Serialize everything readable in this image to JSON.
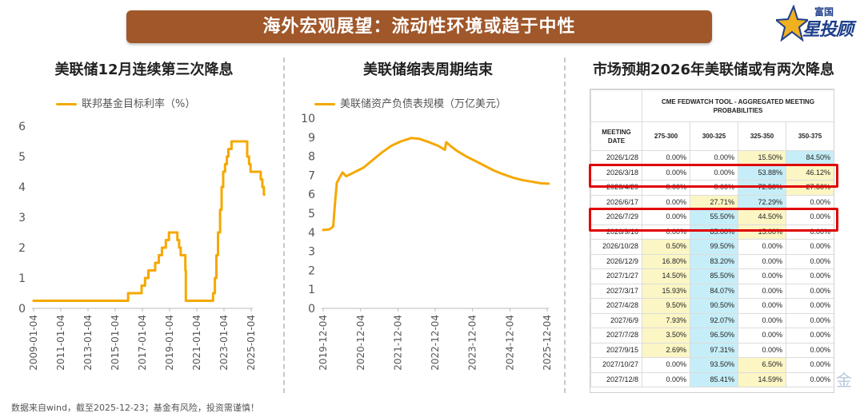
{
  "banner": {
    "title": "海外宏观展望：流动性环境或趋于中性"
  },
  "logo": {
    "small": "富国",
    "big": "星投顾",
    "icon": "star-icon"
  },
  "colors": {
    "line": "#f5a800",
    "banner": "#a0572a",
    "highlight_blue": "#c6eef8",
    "highlight_yellow": "#fbf6c4",
    "red_box": "#e00000"
  },
  "panels": {
    "left_title": "美联储12月连续第三次降息",
    "mid_title": "美联储缩表周期结束",
    "right_title": "市场预期2026年美联储或有两次降息"
  },
  "chart_data": [
    {
      "type": "line",
      "title": "美联储12月连续第三次降息",
      "legend": "top-left",
      "series": [
        {
          "name": "联邦基金目标利率（%）",
          "x": [
            "2009-01-01",
            "2015-12-16",
            "2016-12-14",
            "2017-03-15",
            "2017-06-14",
            "2017-12-13",
            "2018-03-21",
            "2018-06-13",
            "2018-09-26",
            "2018-12-19",
            "2019-07-31",
            "2019-09-18",
            "2019-10-30",
            "2020-03-03",
            "2020-03-15",
            "2022-03-16",
            "2022-05-04",
            "2022-06-15",
            "2022-07-27",
            "2022-09-21",
            "2022-11-02",
            "2022-12-14",
            "2023-02-01",
            "2023-03-22",
            "2023-05-03",
            "2023-07-26",
            "2024-09-18",
            "2024-11-07",
            "2024-12-18",
            "2025-09-17",
            "2025-10-29",
            "2025-12-10",
            "2025-12-23"
          ],
          "values": [
            0.25,
            0.5,
            0.75,
            1.0,
            1.25,
            1.5,
            1.75,
            2.0,
            2.25,
            2.5,
            2.25,
            2.0,
            1.75,
            1.25,
            0.25,
            0.5,
            1.0,
            1.75,
            2.5,
            3.25,
            4.0,
            4.5,
            4.75,
            5.0,
            5.25,
            5.5,
            5.0,
            4.75,
            4.5,
            4.25,
            4.0,
            3.75,
            3.75
          ]
        }
      ],
      "xticks": [
        "2009-01-04",
        "2011-01-04",
        "2013-01-04",
        "2015-01-04",
        "2017-01-04",
        "2019-01-04",
        "2021-01-04",
        "2023-01-04",
        "2025-01-04"
      ],
      "ylim": [
        0,
        6
      ],
      "yticks": [
        0,
        1,
        2,
        3,
        4,
        5,
        6
      ],
      "grid": false
    },
    {
      "type": "line",
      "title": "美联储缩表周期结束",
      "legend": "top-left",
      "series": [
        {
          "name": "美联储资产负债表规模（万亿美元）",
          "x": [
            "2019-12-04",
            "2020-02-01",
            "2020-03-11",
            "2020-03-25",
            "2020-04-15",
            "2020-06-10",
            "2020-07-15",
            "2020-10-01",
            "2021-01-01",
            "2021-04-01",
            "2021-07-01",
            "2021-10-01",
            "2022-01-01",
            "2022-04-13",
            "2022-07-01",
            "2022-10-01",
            "2023-01-01",
            "2023-03-08",
            "2023-03-22",
            "2023-05-01",
            "2023-07-01",
            "2023-10-01",
            "2024-01-01",
            "2024-04-01",
            "2024-07-01",
            "2024-10-01",
            "2025-01-01",
            "2025-04-01",
            "2025-07-01",
            "2025-10-01",
            "2025-12-17"
          ],
          "values": [
            4.12,
            4.15,
            4.3,
            5.3,
            6.6,
            7.15,
            6.95,
            7.15,
            7.4,
            7.8,
            8.2,
            8.55,
            8.78,
            8.96,
            8.92,
            8.75,
            8.55,
            8.34,
            8.74,
            8.55,
            8.3,
            8.0,
            7.75,
            7.5,
            7.25,
            7.05,
            6.88,
            6.75,
            6.67,
            6.58,
            6.56
          ]
        }
      ],
      "xticks": [
        "2019-12-04",
        "2020-12-04",
        "2021-12-04",
        "2022-12-04",
        "2023-12-04",
        "2024-12-04",
        "2025-12-04"
      ],
      "ylim": [
        0,
        10
      ],
      "yticks": [
        0,
        1,
        2,
        3,
        4,
        5,
        6,
        7,
        8,
        9,
        10
      ],
      "grid": false
    },
    {
      "type": "table",
      "title": "CME FEDWATCH TOOL - AGGREGATED MEETING PROBABILITIES",
      "header_left": "MEETING DATE",
      "columns": [
        "275-300",
        "300-325",
        "325-350",
        "350-375"
      ],
      "rows": [
        {
          "date": "2026/1/28",
          "values": [
            "0.00%",
            "0.00%",
            "15.50%",
            "84.50%"
          ],
          "hl": [
            "",
            "",
            "y",
            "b"
          ]
        },
        {
          "date": "2026/3/18",
          "values": [
            "0.00%",
            "0.00%",
            "53.88%",
            "46.12%"
          ],
          "hl": [
            "",
            "",
            "b",
            "y"
          ],
          "boxed": true
        },
        {
          "date": "2026/4/29",
          "values": [
            "0.00%",
            "0.00%",
            "72.50%",
            "27.50%"
          ],
          "hl": [
            "",
            "",
            "b",
            "y"
          ]
        },
        {
          "date": "2026/6/17",
          "values": [
            "0.00%",
            "27.71%",
            "72.29%",
            "0.00%"
          ],
          "hl": [
            "",
            "y",
            "b",
            ""
          ]
        },
        {
          "date": "2026/7/29",
          "values": [
            "0.00%",
            "55.50%",
            "44.50%",
            "0.00%"
          ],
          "hl": [
            "",
            "b",
            "y",
            ""
          ],
          "boxed": true
        },
        {
          "date": "2026/9/16",
          "values": [
            "0.00%",
            "85.00%",
            "15.00%",
            "0.00%"
          ],
          "hl": [
            "",
            "b",
            "y",
            ""
          ]
        },
        {
          "date": "2026/10/28",
          "values": [
            "0.50%",
            "99.50%",
            "0.00%",
            "0.00%"
          ],
          "hl": [
            "y",
            "b",
            "",
            ""
          ]
        },
        {
          "date": "2026/12/9",
          "values": [
            "16.80%",
            "83.20%",
            "0.00%",
            "0.00%"
          ],
          "hl": [
            "y",
            "b",
            "",
            ""
          ]
        },
        {
          "date": "2027/1/27",
          "values": [
            "14.50%",
            "85.50%",
            "0.00%",
            "0.00%"
          ],
          "hl": [
            "y",
            "b",
            "",
            ""
          ]
        },
        {
          "date": "2027/3/17",
          "values": [
            "15.93%",
            "84.07%",
            "0.00%",
            "0.00%"
          ],
          "hl": [
            "y",
            "b",
            "",
            ""
          ]
        },
        {
          "date": "2027/4/28",
          "values": [
            "9.50%",
            "90.50%",
            "0.00%",
            "0.00%"
          ],
          "hl": [
            "y",
            "b",
            "",
            ""
          ]
        },
        {
          "date": "2027/6/9",
          "values": [
            "7.93%",
            "92.07%",
            "0.00%",
            "0.00%"
          ],
          "hl": [
            "y",
            "b",
            "",
            ""
          ]
        },
        {
          "date": "2027/7/28",
          "values": [
            "3.50%",
            "96.50%",
            "0.00%",
            "0.00%"
          ],
          "hl": [
            "y",
            "b",
            "",
            ""
          ]
        },
        {
          "date": "2027/9/15",
          "values": [
            "2.69%",
            "97.31%",
            "0.00%",
            "0.00%"
          ],
          "hl": [
            "y",
            "b",
            "",
            ""
          ]
        },
        {
          "date": "2027/10/27",
          "values": [
            "0.00%",
            "93.50%",
            "6.50%",
            "0.00%"
          ],
          "hl": [
            "",
            "b",
            "y",
            ""
          ]
        },
        {
          "date": "2027/12/8",
          "values": [
            "0.00%",
            "85.41%",
            "14.59%",
            "0.00%"
          ],
          "hl": [
            "",
            "b",
            "y",
            ""
          ]
        }
      ]
    }
  ],
  "footnote": "数据来自wind，截至2025-12-23；基金有风险，投资需谨慎！",
  "watermark": "金"
}
